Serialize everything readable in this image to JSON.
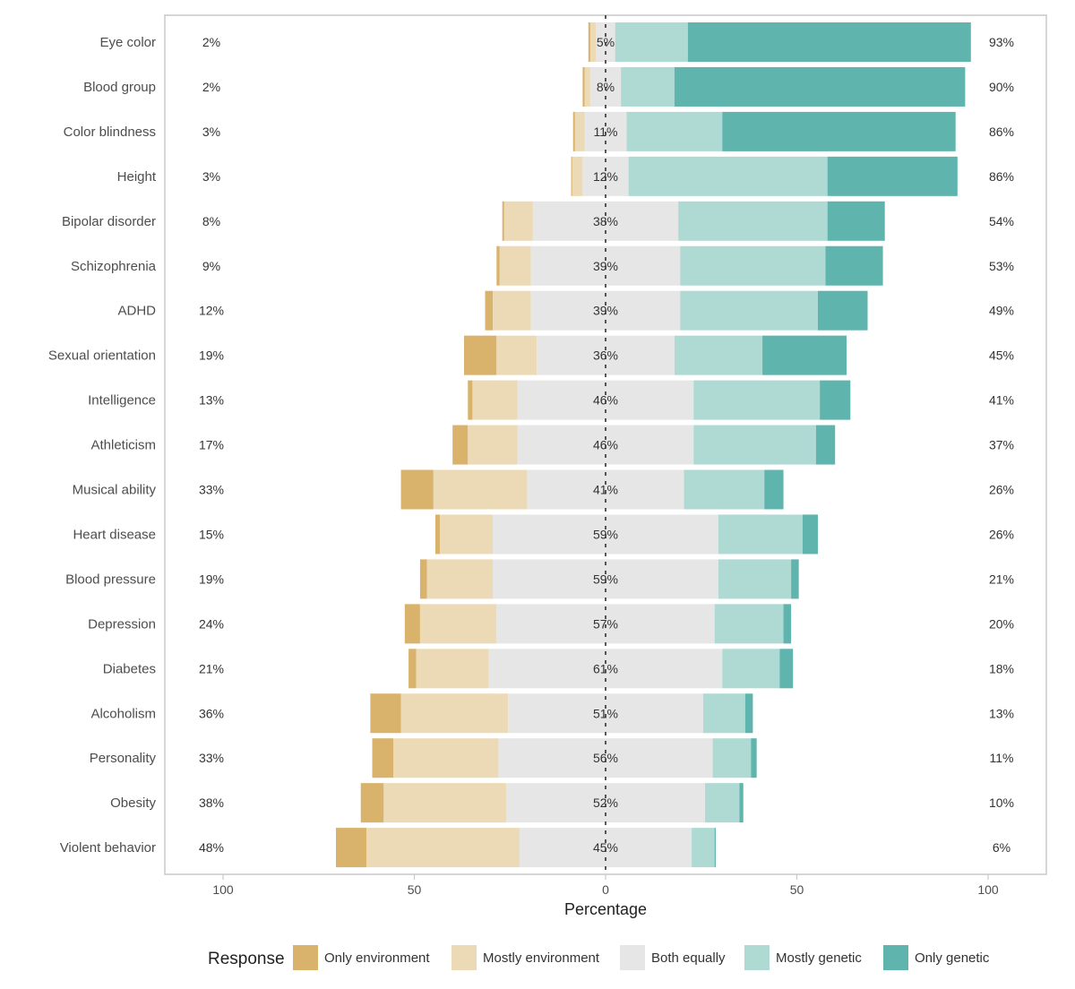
{
  "chart_data": {
    "type": "bar",
    "orientation": "horizontal",
    "stacked": "diverging",
    "xlabel": "Percentage",
    "xlim": [
      -100,
      100
    ],
    "x_ticks": [
      -100,
      -50,
      0,
      50,
      100
    ],
    "x_tick_labels": [
      "100",
      "50",
      "0",
      "50",
      "100"
    ],
    "legend_title": "Response",
    "legend_position": "bottom",
    "grid": false,
    "categories": [
      "Eye color",
      "Blood group",
      "Color blindness",
      "Height",
      "Bipolar disorder",
      "Schizophrenia",
      "ADHD",
      "Sexual orientation",
      "Intelligence",
      "Athleticism",
      "Musical ability",
      "Heart disease",
      "Blood pressure",
      "Depression",
      "Diabetes",
      "Alcoholism",
      "Personality",
      "Obesity",
      "Violent behavior"
    ],
    "series": [
      {
        "name": "Only environment",
        "color": "#d9b26b",
        "values": [
          0.5,
          0.5,
          0.5,
          0.3,
          0.5,
          0.8,
          2,
          8.5,
          1.2,
          4,
          8.5,
          1.2,
          1.8,
          4,
          2,
          8,
          5.5,
          6,
          8
        ]
      },
      {
        "name": "Mostly environment",
        "color": "#ecdab6",
        "values": [
          1.5,
          1.5,
          2.5,
          2.7,
          7.5,
          8.2,
          10,
          10.5,
          11.8,
          13,
          24.5,
          13.8,
          17.2,
          20,
          19,
          28,
          27.5,
          32,
          40
        ]
      },
      {
        "name": "Both equally",
        "color": "#e6e6e6",
        "values": [
          5,
          8,
          11,
          12,
          38,
          39,
          39,
          36,
          46,
          46,
          41,
          59,
          59,
          57,
          61,
          51,
          56,
          52,
          45
        ]
      },
      {
        "name": "Mostly genetic",
        "color": "#afdad4",
        "values": [
          19,
          14,
          25,
          52,
          39,
          38,
          36,
          23,
          33,
          32,
          21,
          22,
          19,
          18,
          15,
          11,
          10,
          9,
          6
        ]
      },
      {
        "name": "Only genetic",
        "color": "#5fb5ad",
        "values": [
          74,
          76,
          61,
          34,
          15,
          15,
          13,
          22,
          8,
          5,
          5,
          4,
          2,
          2,
          3.5,
          2,
          1.5,
          1,
          0.3
        ]
      }
    ],
    "left_totals": [
      "2%",
      "2%",
      "3%",
      "3%",
      "8%",
      "9%",
      "12%",
      "19%",
      "13%",
      "17%",
      "33%",
      "15%",
      "19%",
      "24%",
      "21%",
      "36%",
      "33%",
      "38%",
      "48%"
    ],
    "center_labels": [
      "5%",
      "8%",
      "11%",
      "12%",
      "38%",
      "39%",
      "39%",
      "36%",
      "46%",
      "46%",
      "41%",
      "59%",
      "59%",
      "57%",
      "61%",
      "51%",
      "56%",
      "52%",
      "45%"
    ],
    "right_totals": [
      "93%",
      "90%",
      "86%",
      "86%",
      "54%",
      "53%",
      "49%",
      "45%",
      "41%",
      "37%",
      "26%",
      "26%",
      "21%",
      "20%",
      "18%",
      "13%",
      "11%",
      "10%",
      "6%"
    ]
  }
}
